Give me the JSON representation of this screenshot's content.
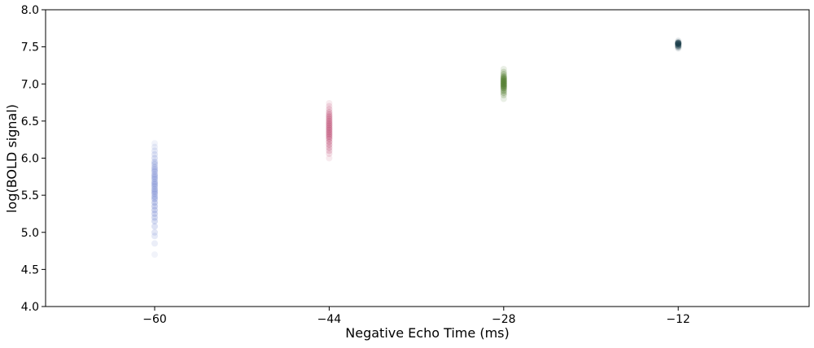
{
  "chart_data": {
    "type": "scatter",
    "title": "",
    "xlabel": "Negative Echo Time (ms)",
    "ylabel": "log(BOLD signal)",
    "xlim": [
      -70,
      0
    ],
    "ylim": [
      4.0,
      8.0
    ],
    "xticks": [
      -60,
      -44,
      -28,
      -12
    ],
    "xtick_labels": [
      "−60",
      "−44",
      "−28",
      "−12"
    ],
    "yticks": [
      4.0,
      4.5,
      5.0,
      5.5,
      6.0,
      6.5,
      7.0,
      7.5,
      8.0
    ],
    "ytick_labels": [
      "4.0",
      "4.5",
      "5.0",
      "5.5",
      "6.0",
      "6.5",
      "7.0",
      "7.5",
      "8.0"
    ],
    "grid": false,
    "legend": "none",
    "series": [
      {
        "x": -60,
        "color": "#8a9ad8",
        "values": [
          4.7,
          4.85,
          4.95,
          5.0,
          5.08,
          5.15,
          5.2,
          5.25,
          5.3,
          5.35,
          5.4,
          5.45,
          5.48,
          5.52,
          5.55,
          5.58,
          5.62,
          5.65,
          5.68,
          5.72,
          5.75,
          5.78,
          5.82,
          5.85,
          5.88,
          5.92,
          5.95,
          6.0,
          6.05,
          6.1,
          6.15,
          6.2
        ]
      },
      {
        "x": -44,
        "color": "#c25a7e",
        "values": [
          6.0,
          6.06,
          6.1,
          6.14,
          6.18,
          6.22,
          6.26,
          6.29,
          6.32,
          6.35,
          6.38,
          6.41,
          6.44,
          6.47,
          6.5,
          6.53,
          6.56,
          6.59,
          6.62,
          6.66,
          6.7,
          6.74
        ]
      },
      {
        "x": -28,
        "color": "#4e7a2a",
        "values": [
          6.8,
          6.85,
          6.88,
          6.91,
          6.94,
          6.96,
          6.98,
          7.0,
          7.02,
          7.04,
          7.06,
          7.08,
          7.1,
          7.13,
          7.16,
          7.2
        ]
      },
      {
        "x": -12,
        "color": "#0e3340",
        "values": [
          7.48,
          7.5,
          7.52,
          7.54,
          7.55,
          7.56,
          7.58
        ]
      }
    ]
  }
}
